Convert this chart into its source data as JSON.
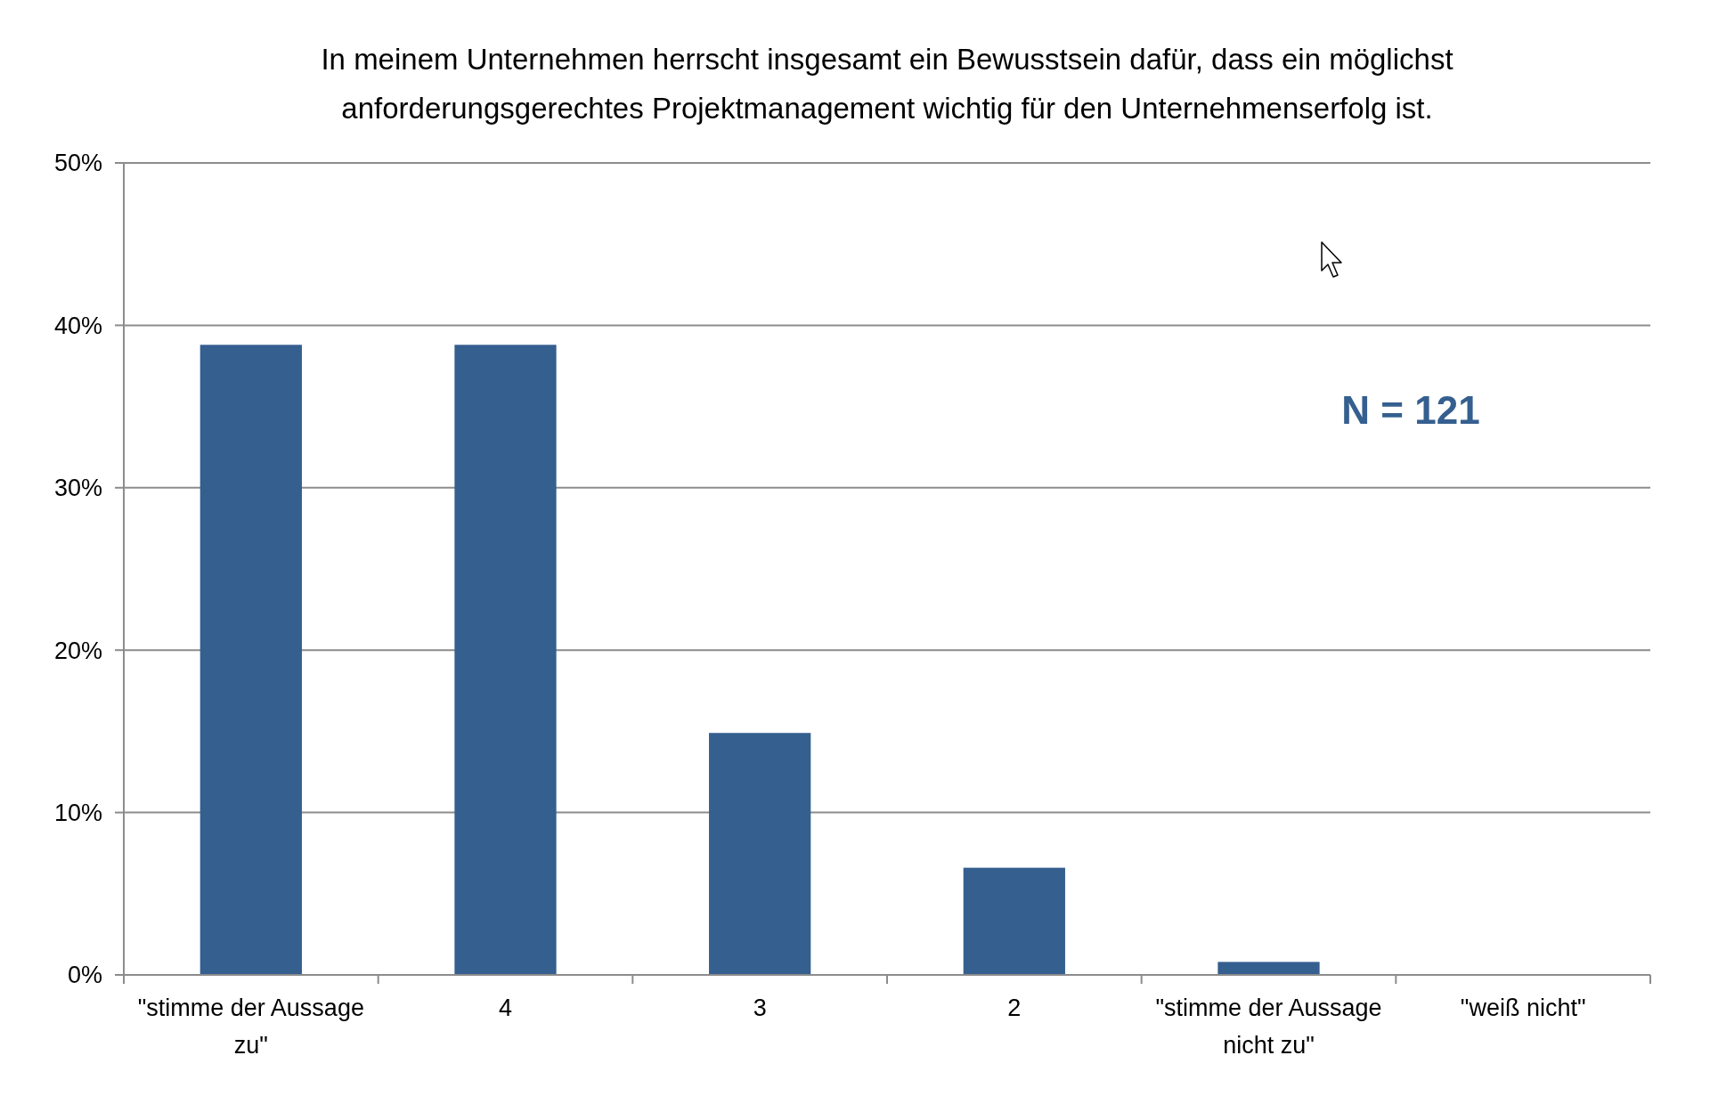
{
  "chart_data": {
    "type": "bar",
    "title": "In meinem Unternehmen herrscht insgesamt ein Bewusstsein dafür, dass ein möglichst anforderungsgerechtes Projektmanagement wichtig für den Unternehmenserfolg ist.",
    "categories": [
      "\"stimme der Aussage zu\"",
      "4",
      "3",
      "2",
      "\"stimme der Aussage nicht zu\"",
      "\"weiß nicht\""
    ],
    "values": [
      38.8,
      38.8,
      14.9,
      6.6,
      0.8,
      0
    ],
    "color": "#355f8f",
    "ylim": [
      0,
      50
    ],
    "yticks": [
      {
        "value": 0,
        "label": "0%"
      },
      {
        "value": 10,
        "label": "10%"
      },
      {
        "value": 20,
        "label": "20%"
      },
      {
        "value": 30,
        "label": "30%"
      },
      {
        "value": 40,
        "label": "40%"
      },
      {
        "value": 50,
        "label": "50%"
      }
    ],
    "grid": "y",
    "annotations": [
      "N = 121"
    ]
  }
}
